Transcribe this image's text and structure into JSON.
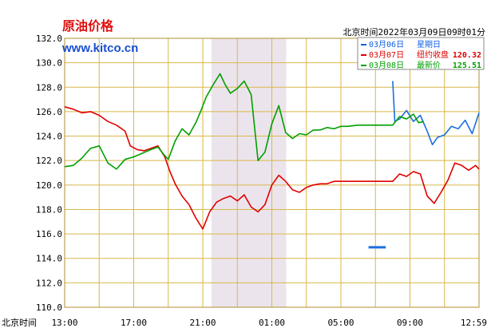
{
  "chart_data": {
    "type": "line",
    "title": "原油价格",
    "site": "www.kitco.cn",
    "timestamp": "北京时间2022年03月09日09时01分",
    "xlabel": "北京时间",
    "x_ticks": [
      "13:00",
      "17:00",
      "21:00",
      "01:00",
      "05:00",
      "09:00",
      "12:59"
    ],
    "ylim": [
      110.0,
      132.0
    ],
    "y_ticks": [
      "132.0",
      "130.0",
      "128.0",
      "126.0",
      "124.0",
      "122.0",
      "120.0",
      "118.0",
      "116.0",
      "114.0",
      "112.0",
      "110.0"
    ],
    "grid": true,
    "shaded_period": [
      "21:30",
      "01:50"
    ],
    "legend": {
      "position": "top-right",
      "entries": [
        {
          "date": "03月06日",
          "text": "星期日",
          "value": "",
          "color": "#1060e0"
        },
        {
          "date": "03月07日",
          "text": "纽约收盘",
          "value": "120.32",
          "color": "#e00000"
        },
        {
          "date": "03月08日",
          "text": "最新价",
          "value": "125.51",
          "color": "#00a000"
        }
      ]
    },
    "x_range_hours": [
      0,
      24
    ],
    "series": [
      {
        "name": "03月06日",
        "color": "#1a6fe0",
        "segments": [
          [
            [
              17.6,
              114.9
            ],
            [
              18.6,
              114.9
            ]
          ],
          [
            [
              19.0,
              128.5
            ],
            [
              19.12,
              125.2
            ],
            [
              19.4,
              125.4
            ],
            [
              19.8,
              126.1
            ],
            [
              20.2,
              125.2
            ],
            [
              20.6,
              125.7
            ],
            [
              21.0,
              124.4
            ],
            [
              21.3,
              123.3
            ],
            [
              21.6,
              123.9
            ],
            [
              22.0,
              124.1
            ],
            [
              22.4,
              124.8
            ],
            [
              22.8,
              124.6
            ],
            [
              23.2,
              125.3
            ],
            [
              23.6,
              124.2
            ],
            [
              24.0,
              125.9
            ]
          ]
        ]
      },
      {
        "name": "03月07日",
        "color": "#e00000",
        "segments": [
          [
            [
              0.0,
              126.4
            ],
            [
              0.5,
              126.2
            ],
            [
              1.0,
              125.9
            ],
            [
              1.5,
              126.0
            ],
            [
              2.0,
              125.7
            ],
            [
              2.5,
              125.2
            ],
            [
              3.0,
              124.9
            ],
            [
              3.5,
              124.4
            ],
            [
              3.8,
              123.2
            ],
            [
              4.2,
              122.9
            ],
            [
              4.6,
              122.8
            ],
            [
              5.0,
              123.0
            ],
            [
              5.4,
              123.2
            ],
            [
              5.8,
              122.3
            ],
            [
              6.1,
              121.1
            ],
            [
              6.4,
              120.1
            ],
            [
              6.8,
              119.1
            ],
            [
              7.2,
              118.4
            ],
            [
              7.6,
              117.3
            ],
            [
              8.0,
              116.4
            ],
            [
              8.4,
              117.8
            ],
            [
              8.8,
              118.6
            ],
            [
              9.2,
              118.9
            ],
            [
              9.6,
              119.1
            ],
            [
              10.0,
              118.7
            ],
            [
              10.4,
              119.2
            ],
            [
              10.8,
              118.2
            ],
            [
              11.2,
              117.8
            ],
            [
              11.6,
              118.4
            ],
            [
              12.0,
              120.0
            ],
            [
              12.4,
              120.8
            ],
            [
              12.8,
              120.3
            ],
            [
              13.2,
              119.6
            ],
            [
              13.6,
              119.4
            ],
            [
              14.0,
              119.8
            ],
            [
              14.4,
              120.0
            ],
            [
              14.8,
              120.1
            ],
            [
              15.2,
              120.1
            ],
            [
              15.6,
              120.3
            ],
            [
              16.0,
              120.3
            ]
          ],
          [
            [
              16.0,
              120.3
            ],
            [
              17.0,
              120.3
            ],
            [
              18.0,
              120.3
            ],
            [
              19.0,
              120.3
            ],
            [
              19.4,
              120.9
            ],
            [
              19.8,
              120.7
            ],
            [
              20.2,
              121.1
            ],
            [
              20.6,
              120.9
            ],
            [
              21.0,
              119.1
            ],
            [
              21.4,
              118.5
            ],
            [
              21.8,
              119.4
            ],
            [
              22.2,
              120.4
            ],
            [
              22.6,
              121.8
            ],
            [
              23.0,
              121.6
            ],
            [
              23.4,
              121.2
            ],
            [
              23.8,
              121.6
            ],
            [
              24.0,
              121.3
            ]
          ]
        ]
      },
      {
        "name": "03月08日",
        "color": "#00a000",
        "segments": [
          [
            [
              0.0,
              121.5
            ],
            [
              0.5,
              121.6
            ],
            [
              1.0,
              122.2
            ],
            [
              1.5,
              123.0
            ],
            [
              2.0,
              123.2
            ],
            [
              2.5,
              121.8
            ],
            [
              3.0,
              121.3
            ],
            [
              3.5,
              122.1
            ],
            [
              4.0,
              122.3
            ],
            [
              4.5,
              122.6
            ],
            [
              5.0,
              122.9
            ],
            [
              5.4,
              123.1
            ],
            [
              5.8,
              122.4
            ],
            [
              6.0,
              122.1
            ],
            [
              6.4,
              123.6
            ],
            [
              6.8,
              124.6
            ],
            [
              7.2,
              124.1
            ],
            [
              7.6,
              125.1
            ],
            [
              7.9,
              126.1
            ],
            [
              8.2,
              127.2
            ],
            [
              8.6,
              128.2
            ],
            [
              9.0,
              129.1
            ],
            [
              9.3,
              128.2
            ],
            [
              9.6,
              127.5
            ],
            [
              10.0,
              127.9
            ],
            [
              10.4,
              128.5
            ],
            [
              10.8,
              127.4
            ],
            [
              11.2,
              122.0
            ],
            [
              11.6,
              122.7
            ],
            [
              12.0,
              125.0
            ],
            [
              12.4,
              126.5
            ],
            [
              12.8,
              124.3
            ],
            [
              13.2,
              123.8
            ],
            [
              13.6,
              124.2
            ],
            [
              14.0,
              124.1
            ]
          ],
          [
            [
              14.0,
              124.1
            ],
            [
              14.4,
              124.5
            ],
            [
              14.8,
              124.5
            ],
            [
              15.2,
              124.7
            ],
            [
              15.6,
              124.6
            ],
            [
              16.0,
              124.8
            ],
            [
              16.4,
              124.8
            ],
            [
              17.0,
              124.9
            ],
            [
              18.0,
              124.9
            ],
            [
              19.0,
              124.9
            ],
            [
              19.4,
              125.6
            ],
            [
              19.8,
              125.4
            ],
            [
              20.2,
              125.8
            ],
            [
              20.5,
              125.1
            ],
            [
              20.8,
              125.2
            ]
          ]
        ]
      }
    ]
  }
}
